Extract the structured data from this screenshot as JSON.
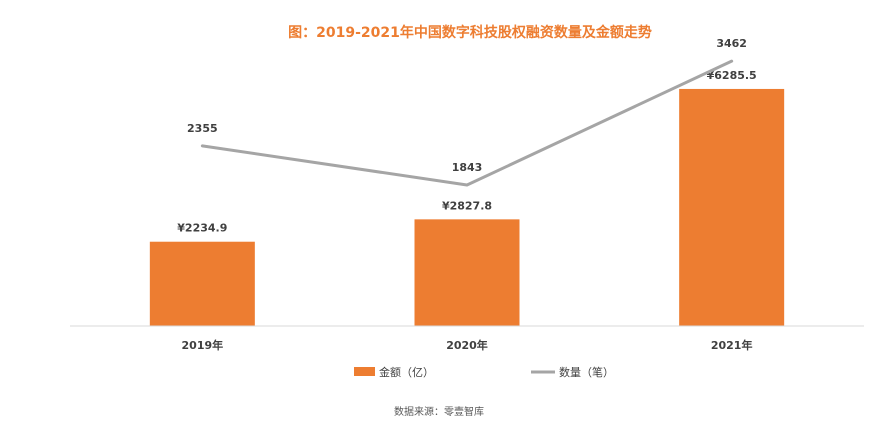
{
  "chart_data": {
    "type": "bar+line",
    "title": "图：2019-2021年中国数字科技股权融资数量及金额走势",
    "categories": [
      "2019年",
      "2020年",
      "2021年"
    ],
    "series": [
      {
        "name": "金额（亿）",
        "type": "bar",
        "color": "#ED7D31",
        "values": [
          2234.9,
          2827.8,
          6285.5
        ],
        "labels": [
          "¥2234.9",
          "¥2827.8",
          "¥6285.5"
        ]
      },
      {
        "name": "数量（笔）",
        "type": "line",
        "color": "#A5A5A5",
        "values": [
          2355,
          1843,
          3462
        ],
        "labels": [
          "2355",
          "1843",
          "3462"
        ]
      }
    ],
    "legend_position": "bottom",
    "grid": false,
    "title_color": "#ED7D31"
  },
  "source_note": "数据来源：零壹智库"
}
